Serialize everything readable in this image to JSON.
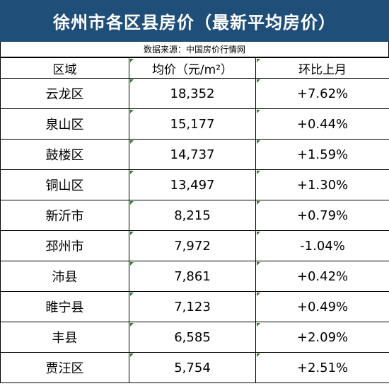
{
  "title": "徐州市各区县房价（最新平均房价）",
  "source": "数据来源：中国房价行情网",
  "headers": {
    "region": "区域",
    "price": "均价（元/m²）",
    "mom": "环比上月"
  },
  "rows": [
    {
      "region": "云龙区",
      "price": "18,352",
      "mom": "+7.62%",
      "trend": "up"
    },
    {
      "region": "泉山区",
      "price": "15,177",
      "mom": "+0.44%",
      "trend": "up"
    },
    {
      "region": "鼓楼区",
      "price": "14,737",
      "mom": "+1.59%",
      "trend": "up"
    },
    {
      "region": "铜山区",
      "price": "13,497",
      "mom": "+1.30%",
      "trend": "up"
    },
    {
      "region": "新沂市",
      "price": "8,215",
      "mom": "+0.79%",
      "trend": "up"
    },
    {
      "region": "邳州市",
      "price": "7,972",
      "mom": "-1.04%",
      "trend": "down"
    },
    {
      "region": "沛县",
      "price": "7,861",
      "mom": "+0.42%",
      "trend": "up"
    },
    {
      "region": "睢宁县",
      "price": "7,123",
      "mom": "+0.49%",
      "trend": "up"
    },
    {
      "region": "丰县",
      "price": "6,585",
      "mom": "+2.09%",
      "trend": "up"
    },
    {
      "region": "贾汪区",
      "price": "5,754",
      "mom": "+2.51%",
      "trend": "up"
    }
  ],
  "colors": {
    "title_bg": "#1f4e79",
    "up": "#c00000",
    "down": "#00b050"
  }
}
